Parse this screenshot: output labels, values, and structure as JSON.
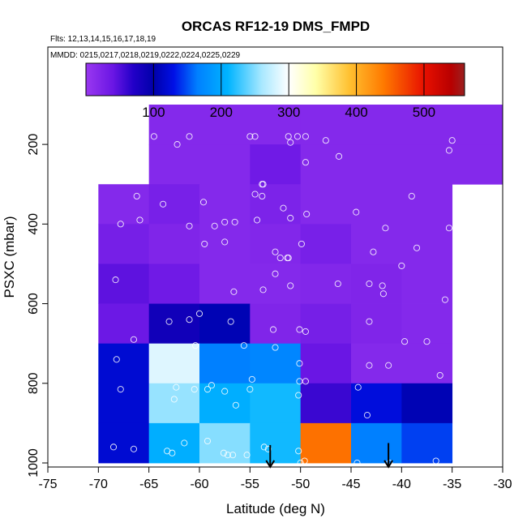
{
  "chart_data": {
    "type": "heatmap",
    "title": "ORCAS RF12-19 DMS_FMPD",
    "notes": [
      "Flts: 12,13,14,15,16,17,18,19",
      "MMDD: 0215,0217,0218,0219,0222,0224,0225,0229"
    ],
    "xlabel": "Latitude (deg N)",
    "ylabel": "PSXC (mbar)",
    "xlim": [
      -75,
      -30
    ],
    "ylim": [
      1000,
      0
    ],
    "xticks": [
      -75,
      -70,
      -65,
      -60,
      -55,
      -50,
      -45,
      -40,
      -35,
      -30
    ],
    "yticks": [
      200,
      400,
      600,
      800,
      1000
    ],
    "colorbar": {
      "range": [
        0,
        560
      ],
      "ticks": [
        100,
        200,
        300,
        400,
        500
      ],
      "stops": [
        {
          "v": 0,
          "c": "#9a38f0"
        },
        {
          "v": 40,
          "c": "#6a16e4"
        },
        {
          "v": 70,
          "c": "#2200c8"
        },
        {
          "v": 100,
          "c": "#0000aa"
        },
        {
          "v": 130,
          "c": "#0010e6"
        },
        {
          "v": 165,
          "c": "#0080ff"
        },
        {
          "v": 210,
          "c": "#00b4ff"
        },
        {
          "v": 260,
          "c": "#a8e8ff"
        },
        {
          "v": 300,
          "c": "#ffffff"
        },
        {
          "v": 340,
          "c": "#ffffa8"
        },
        {
          "v": 390,
          "c": "#ffc030"
        },
        {
          "v": 440,
          "c": "#ff7a00"
        },
        {
          "v": 500,
          "c": "#e81000"
        },
        {
          "v": 540,
          "c": "#b80000"
        },
        {
          "v": 560,
          "c": "#9a2020"
        }
      ]
    },
    "cells": [
      {
        "lat": -62.5,
        "p": 150,
        "v": 18
      },
      {
        "lat": -57.5,
        "p": 150,
        "v": 18
      },
      {
        "lat": -52.5,
        "p": 150,
        "v": 18
      },
      {
        "lat": -47.5,
        "p": 150,
        "v": 18
      },
      {
        "lat": -42.5,
        "p": 150,
        "v": 18
      },
      {
        "lat": -37.5,
        "p": 150,
        "v": 18
      },
      {
        "lat": -32.5,
        "p": 150,
        "v": 18
      },
      {
        "lat": -62.5,
        "p": 250,
        "v": 18
      },
      {
        "lat": -57.5,
        "p": 250,
        "v": 18
      },
      {
        "lat": -52.5,
        "p": 250,
        "v": 35
      },
      {
        "lat": -47.5,
        "p": 250,
        "v": 18
      },
      {
        "lat": -42.5,
        "p": 250,
        "v": 18
      },
      {
        "lat": -37.5,
        "p": 250,
        "v": 18
      },
      {
        "lat": -32.5,
        "p": 250,
        "v": 18
      },
      {
        "lat": -67.5,
        "p": 350,
        "v": 18
      },
      {
        "lat": -62.5,
        "p": 350,
        "v": 28
      },
      {
        "lat": -57.5,
        "p": 350,
        "v": 18
      },
      {
        "lat": -52.5,
        "p": 350,
        "v": 25
      },
      {
        "lat": -47.5,
        "p": 350,
        "v": 18
      },
      {
        "lat": -42.5,
        "p": 350,
        "v": 18
      },
      {
        "lat": -37.5,
        "p": 350,
        "v": 18
      },
      {
        "lat": -67.5,
        "p": 450,
        "v": 30
      },
      {
        "lat": -62.5,
        "p": 450,
        "v": 22
      },
      {
        "lat": -57.5,
        "p": 450,
        "v": 18
      },
      {
        "lat": -52.5,
        "p": 450,
        "v": 20
      },
      {
        "lat": -47.5,
        "p": 450,
        "v": 28
      },
      {
        "lat": -42.5,
        "p": 450,
        "v": 18
      },
      {
        "lat": -37.5,
        "p": 450,
        "v": 18
      },
      {
        "lat": -67.5,
        "p": 550,
        "v": 45
      },
      {
        "lat": -62.5,
        "p": 550,
        "v": 35
      },
      {
        "lat": -57.5,
        "p": 550,
        "v": 18
      },
      {
        "lat": -52.5,
        "p": 550,
        "v": 18
      },
      {
        "lat": -47.5,
        "p": 550,
        "v": 20
      },
      {
        "lat": -42.5,
        "p": 550,
        "v": 22
      },
      {
        "lat": -37.5,
        "p": 550,
        "v": 18
      },
      {
        "lat": -67.5,
        "p": 650,
        "v": 38
      },
      {
        "lat": -62.5,
        "p": 650,
        "v": 85
      },
      {
        "lat": -57.5,
        "p": 650,
        "v": 105
      },
      {
        "lat": -52.5,
        "p": 650,
        "v": 22
      },
      {
        "lat": -47.5,
        "p": 650,
        "v": 30
      },
      {
        "lat": -42.5,
        "p": 650,
        "v": 22
      },
      {
        "lat": -37.5,
        "p": 650,
        "v": 18
      },
      {
        "lat": -67.5,
        "p": 750,
        "v": 120
      },
      {
        "lat": -62.5,
        "p": 750,
        "v": 285
      },
      {
        "lat": -57.5,
        "p": 750,
        "v": 165
      },
      {
        "lat": -52.5,
        "p": 750,
        "v": 170
      },
      {
        "lat": -47.5,
        "p": 750,
        "v": 40
      },
      {
        "lat": -42.5,
        "p": 750,
        "v": 18
      },
      {
        "lat": -37.5,
        "p": 750,
        "v": 18
      },
      {
        "lat": -67.5,
        "p": 850,
        "v": 120
      },
      {
        "lat": -62.5,
        "p": 850,
        "v": 255
      },
      {
        "lat": -57.5,
        "p": 850,
        "v": 205
      },
      {
        "lat": -52.5,
        "p": 850,
        "v": 215
      },
      {
        "lat": -47.5,
        "p": 850,
        "v": 60
      },
      {
        "lat": -42.5,
        "p": 850,
        "v": 125
      },
      {
        "lat": -37.5,
        "p": 850,
        "v": 105
      },
      {
        "lat": -67.5,
        "p": 950,
        "v": 120
      },
      {
        "lat": -62.5,
        "p": 950,
        "v": 205
      },
      {
        "lat": -57.5,
        "p": 950,
        "v": 250
      },
      {
        "lat": -52.5,
        "p": 950,
        "v": 215
      },
      {
        "lat": -47.5,
        "p": 950,
        "v": 445
      },
      {
        "lat": -42.5,
        "p": 950,
        "v": 165
      },
      {
        "lat": -37.5,
        "p": 950,
        "v": 145
      }
    ],
    "points": [
      [
        -64.5,
        180
      ],
      [
        -61,
        180
      ],
      [
        -55,
        180
      ],
      [
        -54.5,
        180
      ],
      [
        -51.2,
        180
      ],
      [
        -50.3,
        180
      ],
      [
        -49.5,
        180
      ],
      [
        -47.5,
        190
      ],
      [
        -51,
        195
      ],
      [
        -62.2,
        200
      ],
      [
        -35,
        190
      ],
      [
        -35.3,
        215
      ],
      [
        -46.2,
        230
      ],
      [
        -49.5,
        245
      ],
      [
        -53.8,
        300
      ],
      [
        -53.7,
        300
      ],
      [
        -66.2,
        330
      ],
      [
        -54.5,
        325
      ],
      [
        -53.8,
        330
      ],
      [
        -39,
        330
      ],
      [
        -59.6,
        345
      ],
      [
        -63.6,
        350
      ],
      [
        -51.7,
        360
      ],
      [
        -44.5,
        370
      ],
      [
        -49.4,
        375
      ],
      [
        -65.9,
        390
      ],
      [
        -54.3,
        390
      ],
      [
        -57.5,
        395
      ],
      [
        -56.5,
        395
      ],
      [
        -51,
        385
      ],
      [
        -58.5,
        405
      ],
      [
        -67.8,
        400
      ],
      [
        -61,
        405
      ],
      [
        -35.3,
        410
      ],
      [
        -41.6,
        410
      ],
      [
        -59.5,
        450
      ],
      [
        -57.5,
        445
      ],
      [
        -49.9,
        450
      ],
      [
        -38.5,
        460
      ],
      [
        -42.8,
        470
      ],
      [
        -52.5,
        470
      ],
      [
        -52,
        485
      ],
      [
        -51.3,
        485
      ],
      [
        -51.2,
        485
      ],
      [
        -52.5,
        525
      ],
      [
        -40,
        505
      ],
      [
        -68.3,
        540
      ],
      [
        -43.2,
        550
      ],
      [
        -41.9,
        555
      ],
      [
        -46.3,
        550
      ],
      [
        -51,
        555
      ],
      [
        -53.7,
        565
      ],
      [
        -56.6,
        570
      ],
      [
        -41.8,
        575
      ],
      [
        -35.7,
        590
      ],
      [
        -56.9,
        645
      ],
      [
        -60,
        625
      ],
      [
        -61,
        640
      ],
      [
        -63,
        645
      ],
      [
        -43.2,
        645
      ],
      [
        -50.1,
        665
      ],
      [
        -52.7,
        665
      ],
      [
        -52.5,
        710
      ],
      [
        -66.5,
        690
      ],
      [
        -60.4,
        705
      ],
      [
        -55.6,
        705
      ],
      [
        -49.5,
        670
      ],
      [
        -37.5,
        695
      ],
      [
        -39.7,
        695
      ],
      [
        -50.1,
        750
      ],
      [
        -41.3,
        755
      ],
      [
        -43.2,
        755
      ],
      [
        -36.2,
        780
      ],
      [
        -68.2,
        740
      ],
      [
        -54.8,
        790
      ],
      [
        -50.1,
        795
      ],
      [
        -49.5,
        795
      ],
      [
        -44.3,
        810
      ],
      [
        -67.8,
        815
      ],
      [
        -59.2,
        815
      ],
      [
        -60.5,
        815
      ],
      [
        -62.3,
        810
      ],
      [
        -58.8,
        805
      ],
      [
        -57.5,
        820
      ],
      [
        -55,
        815
      ],
      [
        -50.2,
        830
      ],
      [
        -62.5,
        840
      ],
      [
        -43.4,
        880
      ],
      [
        -56.4,
        855
      ],
      [
        -68.5,
        960
      ],
      [
        -66.5,
        965
      ],
      [
        -63.2,
        970
      ],
      [
        -62.7,
        975
      ],
      [
        -61.5,
        950
      ],
      [
        -59.2,
        945
      ],
      [
        -57.6,
        975
      ],
      [
        -57.2,
        980
      ],
      [
        -56.7,
        980
      ],
      [
        -55.3,
        980
      ],
      [
        -53.6,
        960
      ],
      [
        -53.2,
        965
      ],
      [
        -50.2,
        970
      ],
      [
        -50,
        1000
      ],
      [
        -49.6,
        995
      ],
      [
        -44.4,
        1000
      ],
      [
        -41.2,
        1000
      ],
      [
        -36.6,
        995
      ]
    ],
    "arrows": [
      {
        "lat": -53,
        "p_top": 955,
        "p_tip": 1010
      },
      {
        "lat": -41.3,
        "p_top": 950,
        "p_tip": 1010
      }
    ]
  }
}
